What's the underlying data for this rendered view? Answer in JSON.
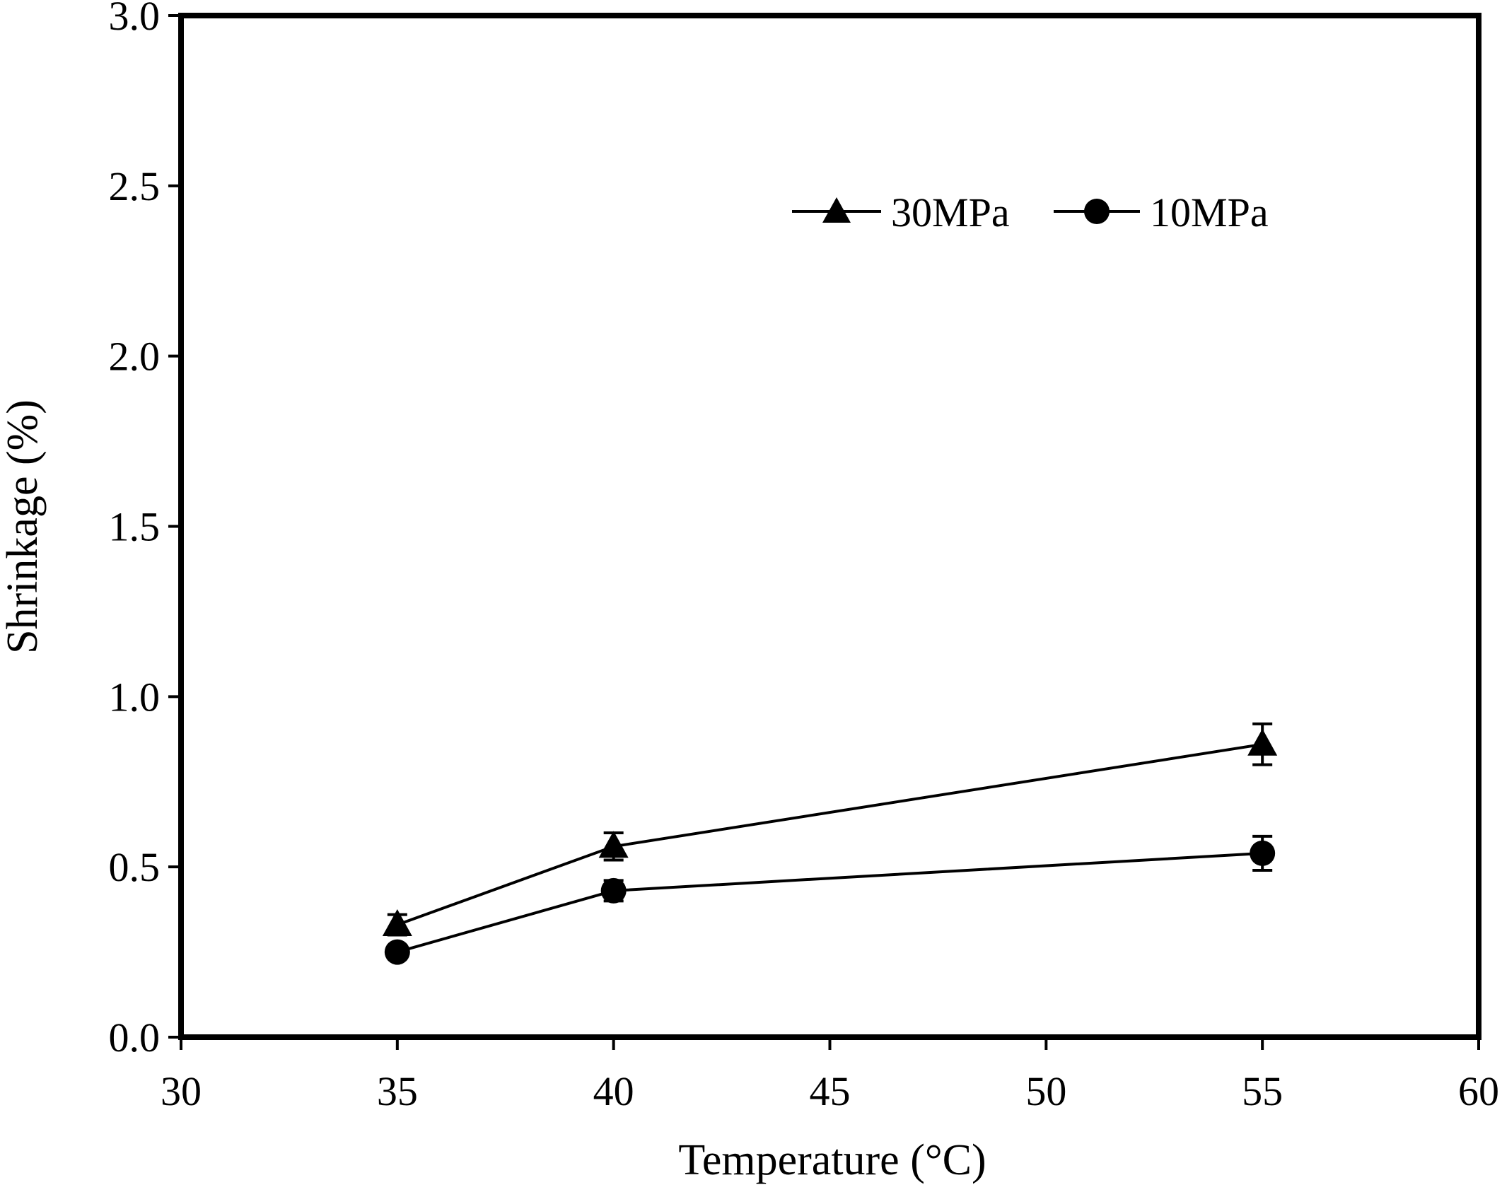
{
  "chart_data": {
    "type": "line",
    "title": "",
    "xlabel": "Temperature (°C)",
    "ylabel": "Shrinkage  (%)",
    "xlim": [
      30,
      60
    ],
    "ylim": [
      0.0,
      3.0
    ],
    "xticks": [
      30,
      35,
      40,
      45,
      50,
      55,
      60
    ],
    "yticks": [
      0.0,
      0.5,
      1.0,
      1.5,
      2.0,
      2.5,
      3.0
    ],
    "xtick_labels": [
      "30",
      "35",
      "40",
      "45",
      "50",
      "55",
      "60"
    ],
    "ytick_labels": [
      "0.0",
      "0.5",
      "1.0",
      "1.5",
      "2.0",
      "2.5",
      "3.0"
    ],
    "grid": false,
    "legend_position": "top-right",
    "series": [
      {
        "name": "30MPa",
        "marker": "triangle",
        "x": [
          35,
          40,
          55
        ],
        "values": [
          0.33,
          0.56,
          0.86
        ],
        "error": [
          0.03,
          0.04,
          0.06
        ]
      },
      {
        "name": "10MPa",
        "marker": "circle",
        "x": [
          35,
          40,
          55
        ],
        "values": [
          0.25,
          0.43,
          0.54
        ],
        "error": [
          0.02,
          0.03,
          0.05
        ]
      }
    ]
  }
}
